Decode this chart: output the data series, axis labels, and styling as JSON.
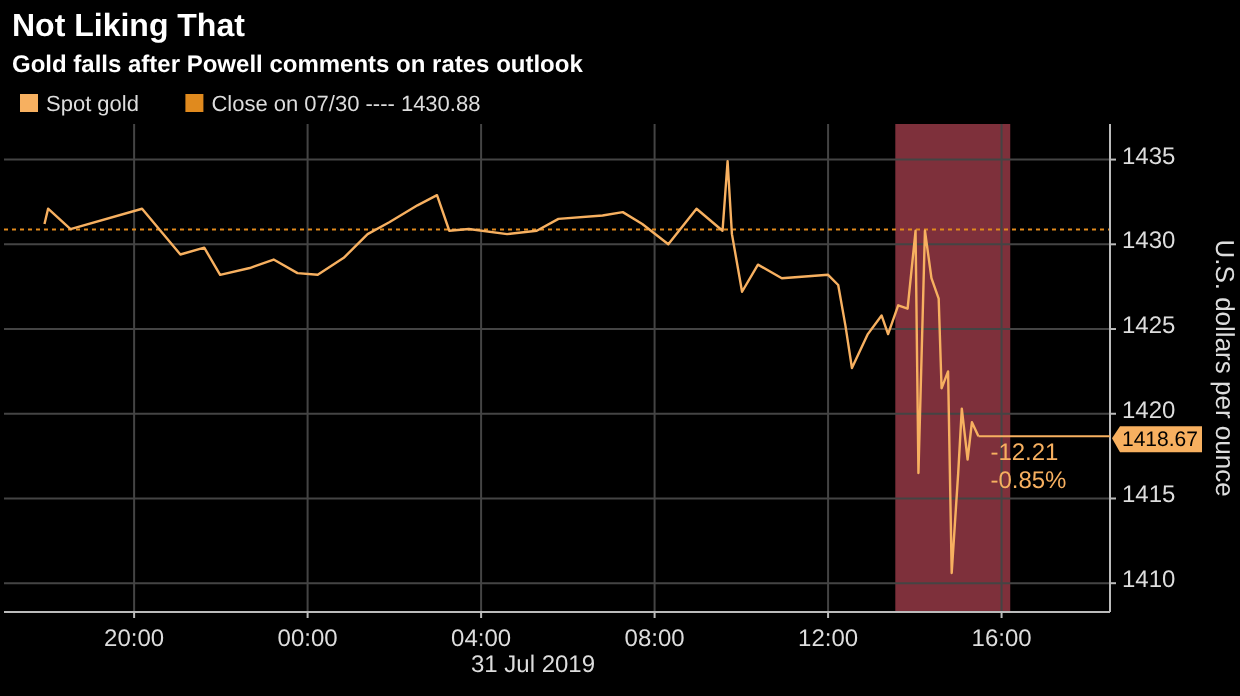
{
  "chart_data": {
    "type": "line",
    "title": "Not Liking That",
    "subtitle": "Gold falls after Powell comments on rates outlook",
    "xlabel": "31 Jul 2019",
    "ylabel": "U.S. dollars per ounce",
    "x": [
      "2019-07-30T17:56",
      "2019-07-30T18:01",
      "2019-07-30T18:32",
      "2019-07-30T20:11",
      "2019-07-30T21:04",
      "2019-07-30T21:37",
      "2019-07-30T21:59",
      "2019-07-30T22:40",
      "2019-07-30T23:13",
      "2019-07-30T23:46",
      "2019-07-31T00:14",
      "2019-07-31T00:50",
      "2019-07-31T01:23",
      "2019-07-31T01:53",
      "2019-07-31T02:32",
      "2019-07-31T02:59",
      "2019-07-31T03:16",
      "2019-07-31T03:43",
      "2019-07-31T04:36",
      "2019-07-31T05:17",
      "2019-07-31T05:47",
      "2019-07-31T06:48",
      "2019-07-31T07:16",
      "2019-07-31T07:43",
      "2019-07-31T08:19",
      "2019-07-31T08:58",
      "2019-07-31T09:34",
      "2019-07-31T09:41",
      "2019-07-31T09:47",
      "2019-07-31T10:01",
      "2019-07-31T10:23",
      "2019-07-31T10:56",
      "2019-07-31T12:00",
      "2019-07-31T12:14",
      "2019-07-31T12:24",
      "2019-07-31T12:33",
      "2019-07-31T12:55",
      "2019-07-31T13:14",
      "2019-07-31T13:23",
      "2019-07-31T13:37",
      "2019-07-31T13:50",
      "2019-07-31T14:01",
      "2019-07-31T14:05",
      "2019-07-31T14:14",
      "2019-07-31T14:23",
      "2019-07-31T14:33",
      "2019-07-31T14:37",
      "2019-07-31T14:46",
      "2019-07-31T14:51",
      "2019-07-31T15:00",
      "2019-07-31T15:05",
      "2019-07-31T15:13",
      "2019-07-31T15:19",
      "2019-07-31T15:28"
    ],
    "series": [
      {
        "name": "Spot gold",
        "color": "#f7b060",
        "values": [
          1431.2,
          1432.1,
          1430.9,
          1432.1,
          1429.4,
          1429.8,
          1428.2,
          1428.6,
          1429.1,
          1428.3,
          1428.2,
          1429.2,
          1430.6,
          1431.3,
          1432.3,
          1432.9,
          1430.8,
          1430.9,
          1430.6,
          1430.8,
          1431.5,
          1431.7,
          1431.9,
          1431.2,
          1430.0,
          1432.1,
          1430.8,
          1434.9,
          1430.6,
          1427.2,
          1428.8,
          1428.0,
          1428.2,
          1427.6,
          1425.2,
          1422.7,
          1424.7,
          1425.8,
          1424.7,
          1426.4,
          1426.2,
          1430.8,
          1416.5,
          1430.8,
          1428.0,
          1426.8,
          1421.5,
          1422.5,
          1410.6,
          1416.5,
          1420.3,
          1417.3,
          1419.5,
          1418.67
        ]
      }
    ],
    "xlim": [
      "2019-07-30T17:00",
      "2019-07-31T18:30"
    ],
    "ylim": [
      1408.3,
      1437.1
    ],
    "xticks": [
      {
        "value": "2019-07-30T20:00",
        "label": "20:00"
      },
      {
        "value": "2019-07-31T00:00",
        "label": "00:00"
      },
      {
        "value": "2019-07-31T04:00",
        "label": "04:00"
      },
      {
        "value": "2019-07-31T08:00",
        "label": "08:00"
      },
      {
        "value": "2019-07-31T12:00",
        "label": "12:00"
      },
      {
        "value": "2019-07-31T16:00",
        "label": "16:00"
      }
    ],
    "yticks": [
      1410,
      1415,
      1420,
      1425,
      1430,
      1435
    ],
    "grid": true,
    "legend": "top left",
    "line_style": "solid",
    "ref_lines": [
      {
        "axis": "y",
        "value": 1430.88,
        "label": "Close on 07/30 ---- 1430.88",
        "color": "#e08a1e",
        "line_style": "dotted"
      }
    ],
    "bands": [
      {
        "axis": "x",
        "from": "2019-07-31T13:33",
        "to": "2019-07-31T16:12",
        "color": "#a8404f"
      }
    ],
    "annotations": [
      "-12.21",
      "-0.85%",
      {
        "text": "1418.67",
        "x": "2019-07-31T15:28",
        "y": 1418.67
      }
    ]
  }
}
